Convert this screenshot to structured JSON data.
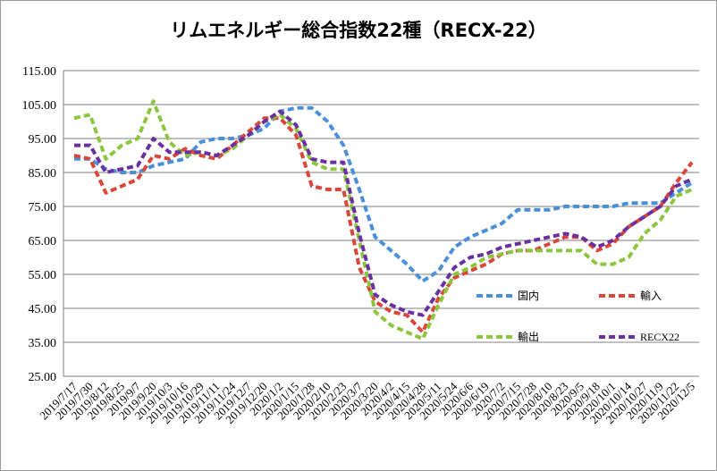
{
  "chart_data": {
    "type": "line",
    "title": "リムエネルギー総合指数22種（RECX-22）",
    "xlabel": "",
    "ylabel": "",
    "ylim": [
      25,
      115
    ],
    "yticks": [
      "115.00",
      "105.00",
      "95.00",
      "85.00",
      "75.00",
      "65.00",
      "55.00",
      "45.00",
      "35.00",
      "25.00"
    ],
    "grid": true,
    "legend_position": "bottom-right",
    "categories": [
      "2019/7/17",
      "2019/7/30",
      "2019/8/12",
      "2019/8/25",
      "2019/9/7",
      "2019/9/20",
      "2019/10/3",
      "2019/10/16",
      "2019/10/29",
      "2019/11/11",
      "2019/11/24",
      "2019/12/7",
      "2019/12/20",
      "2020/1/2",
      "2020/1/15",
      "2020/1/28",
      "2020/2/10",
      "2020/2/23",
      "2020/3/7",
      "2020/3/20",
      "2020/4/2",
      "2020/4/15",
      "2020/4/28",
      "2020/5/11",
      "2020/5/24",
      "2020/6/6",
      "2020/6/19",
      "2020/7/2",
      "2020/7/15",
      "2020/7/28",
      "2020/8/10",
      "2020/8/23",
      "2020/9/5",
      "2020/9/18",
      "2020/10/1",
      "2020/10/14",
      "2020/10/27",
      "2020/11/9",
      "2020/11/22",
      "2020/12/5"
    ],
    "series": [
      {
        "name": "国内",
        "color": "#4a90d9",
        "values": [
          89,
          89,
          86,
          85,
          85,
          87,
          88,
          89,
          94,
          95,
          95,
          96,
          98,
          103,
          104,
          104,
          100,
          93,
          80,
          66,
          62,
          58,
          53,
          56,
          63,
          66,
          68,
          70,
          74,
          74,
          74,
          75,
          75,
          75,
          75,
          76,
          76,
          76,
          79,
          82
        ]
      },
      {
        "name": "輸入",
        "color": "#d9463a",
        "values": [
          90,
          89,
          79,
          81,
          83,
          90,
          89,
          92,
          90,
          89,
          93,
          97,
          101,
          101,
          96,
          81,
          80,
          80,
          57,
          47,
          44,
          43,
          38,
          48,
          54,
          56,
          58,
          61,
          62,
          62,
          64,
          66,
          66,
          62,
          64,
          69,
          72,
          75,
          82,
          88
        ]
      },
      {
        "name": "輸出",
        "color": "#8cc63f",
        "values": [
          101,
          102,
          89,
          93,
          95,
          106,
          94,
          90,
          91,
          90,
          92,
          96,
          100,
          102,
          98,
          88,
          86,
          86,
          65,
          44,
          40,
          38,
          36,
          46,
          55,
          57,
          60,
          61,
          62,
          62,
          62,
          62,
          62,
          58,
          58,
          60,
          67,
          71,
          78,
          80
        ]
      },
      {
        "name": "RECX22",
        "color": "#6a2fa0",
        "values": [
          93,
          93,
          85,
          86,
          87,
          95,
          91,
          91,
          91,
          90,
          93,
          96,
          100,
          103,
          99,
          89,
          88,
          88,
          67,
          49,
          46,
          44,
          43,
          50,
          57,
          60,
          61,
          63,
          64,
          65,
          66,
          67,
          66,
          63,
          65,
          69,
          72,
          75,
          81,
          83
        ]
      }
    ]
  }
}
